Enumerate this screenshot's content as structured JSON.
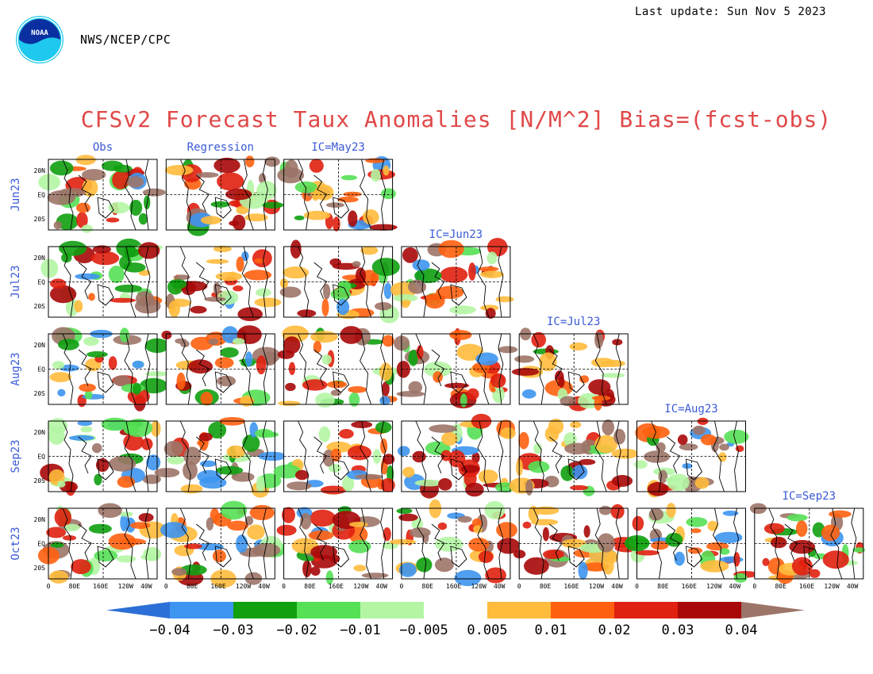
{
  "header": {
    "agency": "NWS/NCEP/CPC",
    "last_update": "Last update: Sun Nov 5 2023",
    "logo_text": "NOAA"
  },
  "chart_data": {
    "type": "heatmap",
    "title": "CFSv2 Forecast Taux Anomalies [N/M^2] Bias=(fcst-obs)",
    "column_labels": [
      "Obs",
      "Regression",
      "IC=May23",
      "IC=Jun23",
      "IC=Jul23",
      "IC=Aug23",
      "IC=Sep23"
    ],
    "row_labels": [
      "Jun23",
      "Jul23",
      "Aug23",
      "Sep23",
      "Oct23"
    ],
    "x_ticks": [
      "0",
      "80E",
      "160E",
      "120W",
      "40W"
    ],
    "y_ticks": [
      "20N",
      "EQ",
      "20S"
    ],
    "panels_per_row": [
      3,
      4,
      5,
      6,
      7
    ],
    "colorbar": {
      "colors": [
        "#2c6fd6",
        "#3d95f0",
        "#10a010",
        "#55e055",
        "#b4f5a4",
        "#ffffff",
        "#ffbb3c",
        "#ff6010",
        "#e02010",
        "#a80808",
        "#9c7468"
      ],
      "labels": [
        "−0.04",
        "−0.03",
        "−0.02",
        "−0.01",
        "−0.005",
        "0.005",
        "0.01",
        "0.02",
        "0.03",
        "0.04"
      ]
    }
  }
}
